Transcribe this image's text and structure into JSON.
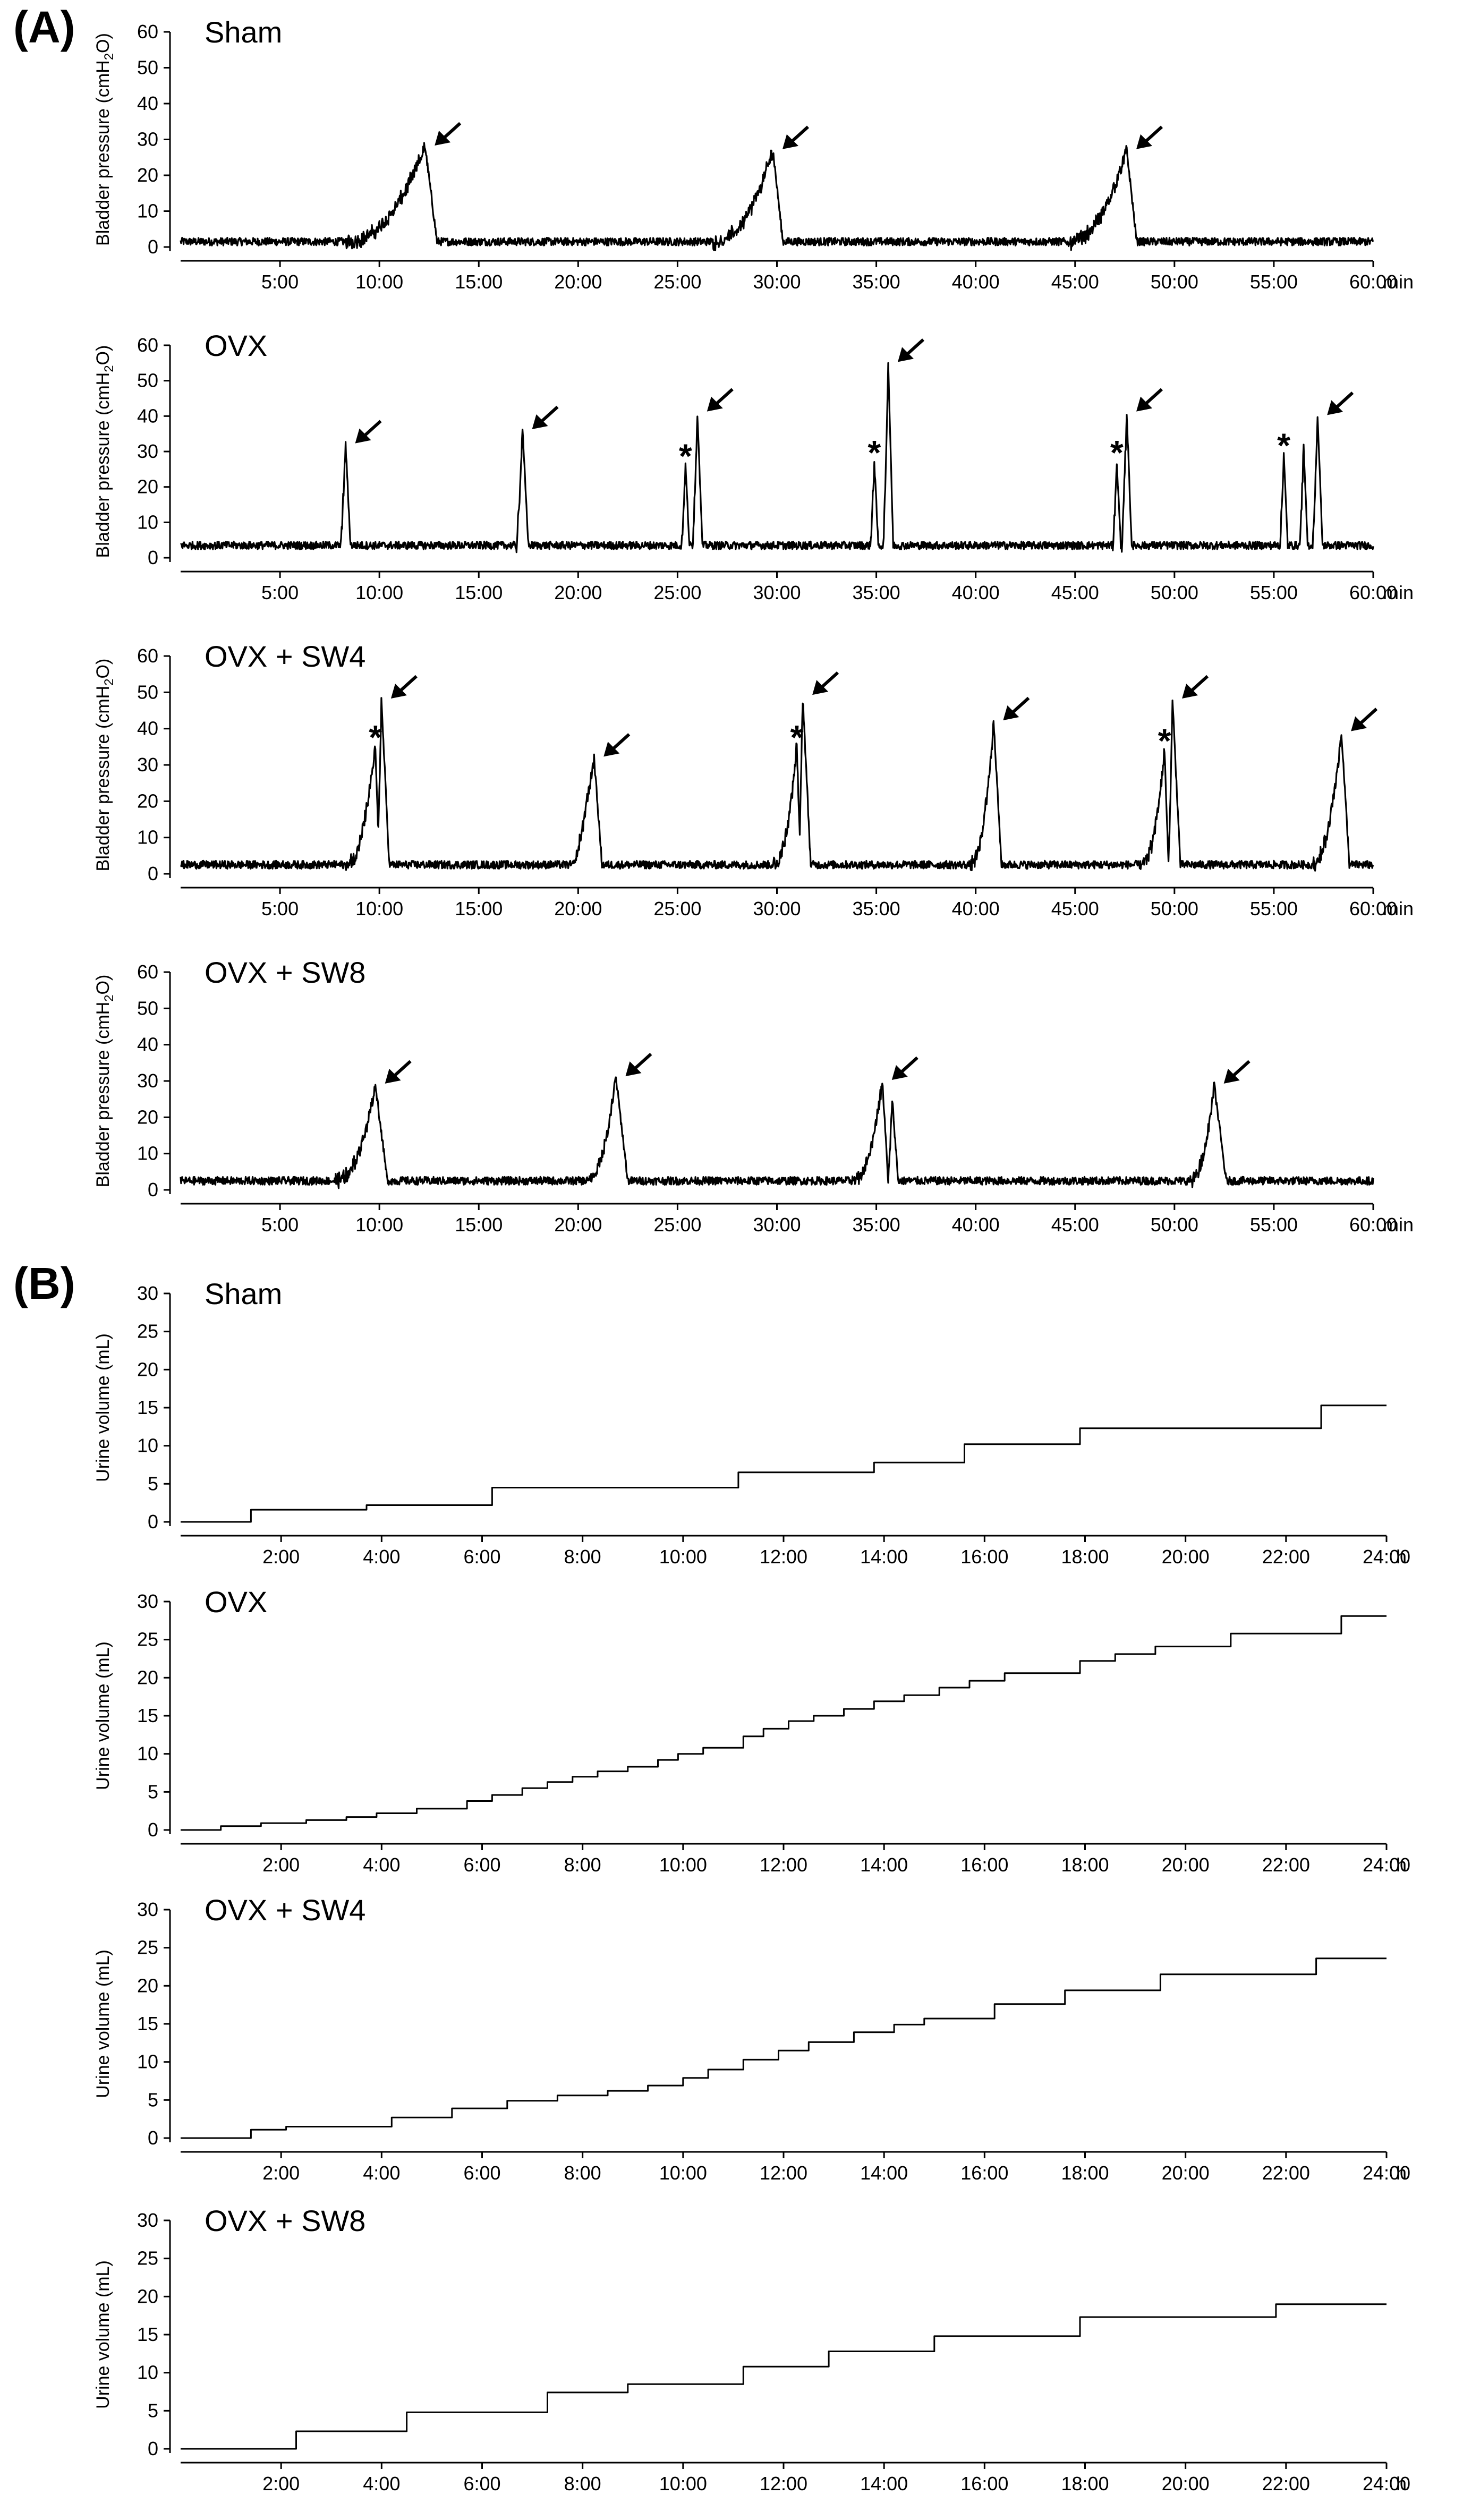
{
  "figure": {
    "label_a": "(A)",
    "label_b": "(B)"
  },
  "chart_data": [
    {
      "type": "line",
      "panel": "A",
      "title": "Sham",
      "ylabel": "Bladder pressure (cmH2O)",
      "ylabel_parts": [
        "Bladder pressure (cmH",
        "2",
        "O)"
      ],
      "xunit": "min",
      "xlim": [
        0,
        60
      ],
      "ylim": [
        0,
        60
      ],
      "yticks": [
        "0",
        "10",
        "20",
        "30",
        "40",
        "50",
        "60"
      ],
      "xticks": [
        "5:00",
        "10:00",
        "15:00",
        "20:00",
        "25:00",
        "30:00",
        "35:00",
        "40:00",
        "45:00",
        "50:00",
        "55:00",
        "60:00"
      ],
      "baseline": 1.5,
      "peaks": [
        {
          "t": 12.3,
          "v": 28,
          "rise": 4.0,
          "fall": 0.6
        },
        {
          "t": 29.8,
          "v": 27,
          "rise": 3.0,
          "fall": 0.5
        },
        {
          "t": 47.6,
          "v": 27,
          "rise": 3.0,
          "fall": 0.5
        }
      ],
      "arrows_at_min": [
        12.3,
        29.8,
        47.6
      ],
      "asterisks_at_min": []
    },
    {
      "type": "line",
      "panel": "A",
      "title": "OVX",
      "ylabel": "Bladder pressure (cmH2O)",
      "ylabel_parts": [
        "Bladder pressure (cmH",
        "2",
        "O)"
      ],
      "xunit": "min",
      "xlim": [
        0,
        60
      ],
      "ylim": [
        0,
        60
      ],
      "yticks": [
        "0",
        "10",
        "20",
        "30",
        "40",
        "50",
        "60"
      ],
      "xticks": [
        "5:00",
        "10:00",
        "15:00",
        "20:00",
        "25:00",
        "30:00",
        "35:00",
        "40:00",
        "45:00",
        "50:00",
        "55:00",
        "60:00"
      ],
      "baseline": 3.5,
      "peaks": [
        {
          "t": 8.3,
          "v": 32,
          "rise": 0.25,
          "fall": 0.25
        },
        {
          "t": 17.2,
          "v": 36,
          "rise": 0.3,
          "fall": 0.3
        },
        {
          "t": 25.4,
          "v": 26,
          "rise": 0.2,
          "fall": 0.2
        },
        {
          "t": 26.0,
          "v": 41,
          "rise": 0.25,
          "fall": 0.25
        },
        {
          "t": 34.9,
          "v": 27,
          "rise": 0.2,
          "fall": 0.2
        },
        {
          "t": 35.6,
          "v": 55,
          "rise": 0.25,
          "fall": 0.25
        },
        {
          "t": 47.1,
          "v": 27,
          "rise": 0.2,
          "fall": 0.2
        },
        {
          "t": 47.6,
          "v": 41,
          "rise": 0.25,
          "fall": 0.25
        },
        {
          "t": 55.5,
          "v": 29,
          "rise": 0.2,
          "fall": 0.2
        },
        {
          "t": 56.5,
          "v": 31,
          "rise": 0.2,
          "fall": 0.2
        },
        {
          "t": 57.2,
          "v": 40,
          "rise": 0.25,
          "fall": 0.25
        }
      ],
      "arrows_at_min": [
        8.3,
        17.2,
        26.0,
        35.6,
        47.6,
        57.2
      ],
      "asterisks_at_min": [
        25.4,
        34.9,
        47.1,
        55.5
      ]
    },
    {
      "type": "line",
      "panel": "A",
      "title": "OVX + SW4",
      "ylabel": "Bladder pressure (cmH2O)",
      "ylabel_parts": [
        "Bladder pressure (cmH",
        "2",
        "O)"
      ],
      "xunit": "min",
      "xlim": [
        0,
        60
      ],
      "ylim": [
        0,
        60
      ],
      "yticks": [
        "0",
        "10",
        "20",
        "30",
        "40",
        "50",
        "60"
      ],
      "xticks": [
        "5:00",
        "10:00",
        "15:00",
        "20:00",
        "25:00",
        "30:00",
        "35:00",
        "40:00",
        "45:00",
        "50:00",
        "55:00",
        "60:00"
      ],
      "baseline": 2.5,
      "peaks": [
        {
          "t": 9.8,
          "v": 35,
          "rise": 1.5,
          "fall": 0.2
        },
        {
          "t": 10.1,
          "v": 48,
          "rise": 0.2,
          "fall": 0.4
        },
        {
          "t": 20.8,
          "v": 32,
          "rise": 1.0,
          "fall": 0.4
        },
        {
          "t": 31.0,
          "v": 35,
          "rise": 1.2,
          "fall": 0.2
        },
        {
          "t": 31.3,
          "v": 49,
          "rise": 0.2,
          "fall": 0.4
        },
        {
          "t": 40.9,
          "v": 42,
          "rise": 1.2,
          "fall": 0.4
        },
        {
          "t": 49.5,
          "v": 34,
          "rise": 1.2,
          "fall": 0.2
        },
        {
          "t": 49.9,
          "v": 48,
          "rise": 0.2,
          "fall": 0.4
        },
        {
          "t": 58.4,
          "v": 39,
          "rise": 1.5,
          "fall": 0.4
        }
      ],
      "arrows_at_min": [
        10.1,
        20.8,
        31.3,
        40.9,
        49.9,
        58.4
      ],
      "asterisks_at_min": [
        9.8,
        31.0,
        49.5
      ]
    },
    {
      "type": "line",
      "panel": "A",
      "title": "OVX + SW8",
      "ylabel": "Bladder pressure (cmH2O)",
      "ylabel_parts": [
        "Bladder pressure (cmH",
        "2",
        "O)"
      ],
      "xunit": "min",
      "xlim": [
        0,
        60
      ],
      "ylim": [
        0,
        60
      ],
      "yticks": [
        "0",
        "10",
        "20",
        "30",
        "40",
        "50",
        "60"
      ],
      "xticks": [
        "5:00",
        "10:00",
        "15:00",
        "20:00",
        "25:00",
        "30:00",
        "35:00",
        "40:00",
        "45:00",
        "50:00",
        "55:00",
        "60:00"
      ],
      "baseline": 2.5,
      "peaks": [
        {
          "t": 9.8,
          "v": 29,
          "rise": 2.0,
          "fall": 0.6
        },
        {
          "t": 21.9,
          "v": 31,
          "rise": 1.5,
          "fall": 0.6
        },
        {
          "t": 35.3,
          "v": 30,
          "rise": 1.5,
          "fall": 0.3
        },
        {
          "t": 35.8,
          "v": 25,
          "rise": 0.2,
          "fall": 0.3
        },
        {
          "t": 52.0,
          "v": 29,
          "rise": 1.2,
          "fall": 0.6
        }
      ],
      "arrows_at_min": [
        9.8,
        21.9,
        35.3,
        52.0
      ],
      "asterisks_at_min": []
    },
    {
      "type": "line",
      "panel": "B",
      "title": "Sham",
      "ylabel": "Urine volume (mL)",
      "xunit": "h",
      "xlim": [
        0,
        24
      ],
      "ylim": [
        0,
        30
      ],
      "yticks": [
        "0",
        "5",
        "10",
        "15",
        "20",
        "25",
        "30"
      ],
      "xticks": [
        "2:00",
        "4:00",
        "6:00",
        "8:00",
        "10:00",
        "12:00",
        "14:00",
        "16:00",
        "18:00",
        "20:00",
        "22:00",
        "24:00"
      ],
      "steps": [
        [
          0,
          0
        ],
        [
          1.4,
          1.6
        ],
        [
          3.7,
          2.2
        ],
        [
          6.2,
          4.5
        ],
        [
          11.1,
          6.5
        ],
        [
          13.8,
          7.8
        ],
        [
          15.6,
          10.2
        ],
        [
          17.9,
          12.3
        ],
        [
          22.7,
          15.3
        ]
      ],
      "xend": 24.0
    },
    {
      "type": "line",
      "panel": "B",
      "title": "OVX",
      "ylabel": "Urine volume (mL)",
      "xunit": "h",
      "xlim": [
        0,
        24
      ],
      "ylim": [
        0,
        30
      ],
      "yticks": [
        "0",
        "5",
        "10",
        "15",
        "20",
        "25",
        "30"
      ],
      "xticks": [
        "2:00",
        "4:00",
        "6:00",
        "8:00",
        "10:00",
        "12:00",
        "14:00",
        "16:00",
        "18:00",
        "20:00",
        "22:00",
        "24:00"
      ],
      "steps": [
        [
          0,
          0
        ],
        [
          0.8,
          0.5
        ],
        [
          1.6,
          0.9
        ],
        [
          2.5,
          1.3
        ],
        [
          3.3,
          1.7
        ],
        [
          3.9,
          2.2
        ],
        [
          4.7,
          2.8
        ],
        [
          5.7,
          3.8
        ],
        [
          6.2,
          4.6
        ],
        [
          6.8,
          5.5
        ],
        [
          7.3,
          6.3
        ],
        [
          7.8,
          7.0
        ],
        [
          8.3,
          7.7
        ],
        [
          8.9,
          8.3
        ],
        [
          9.5,
          9.2
        ],
        [
          9.9,
          10.0
        ],
        [
          10.4,
          10.8
        ],
        [
          11.2,
          12.3
        ],
        [
          11.6,
          13.3
        ],
        [
          12.1,
          14.3
        ],
        [
          12.6,
          15.0
        ],
        [
          13.2,
          15.9
        ],
        [
          13.8,
          16.9
        ],
        [
          14.4,
          17.7
        ],
        [
          15.1,
          18.7
        ],
        [
          15.7,
          19.6
        ],
        [
          16.4,
          20.6
        ],
        [
          17.9,
          22.2
        ],
        [
          18.6,
          23.1
        ],
        [
          19.4,
          24.1
        ],
        [
          20.9,
          25.8
        ],
        [
          23.1,
          28.1
        ]
      ],
      "xend": 24.0
    },
    {
      "type": "line",
      "panel": "B",
      "title": "OVX + SW4",
      "ylabel": "Urine volume (mL)",
      "xunit": "h",
      "xlim": [
        0,
        24
      ],
      "ylim": [
        0,
        30
      ],
      "yticks": [
        "0",
        "5",
        "10",
        "15",
        "20",
        "25",
        "30"
      ],
      "xticks": [
        "2:00",
        "4:00",
        "6:00",
        "8:00",
        "10:00",
        "12:00",
        "14:00",
        "16:00",
        "18:00",
        "20:00",
        "22:00",
        "24:00"
      ],
      "steps": [
        [
          0,
          0
        ],
        [
          1.4,
          1.1
        ],
        [
          2.1,
          1.5
        ],
        [
          4.2,
          2.7
        ],
        [
          5.4,
          3.9
        ],
        [
          6.5,
          4.9
        ],
        [
          7.5,
          5.6
        ],
        [
          8.5,
          6.2
        ],
        [
          9.3,
          6.9
        ],
        [
          10.0,
          7.9
        ],
        [
          10.5,
          9.0
        ],
        [
          11.2,
          10.3
        ],
        [
          11.9,
          11.5
        ],
        [
          12.5,
          12.6
        ],
        [
          13.4,
          13.9
        ],
        [
          14.2,
          14.9
        ],
        [
          14.8,
          15.7
        ],
        [
          16.2,
          17.6
        ],
        [
          17.6,
          19.4
        ],
        [
          19.5,
          21.5
        ],
        [
          22.6,
          23.6
        ]
      ],
      "xend": 24.0
    },
    {
      "type": "line",
      "panel": "B",
      "title": "OVX + SW8",
      "ylabel": "Urine volume (mL)",
      "xunit": "h",
      "xlim": [
        0,
        24
      ],
      "ylim": [
        0,
        30
      ],
      "yticks": [
        "0",
        "5",
        "10",
        "15",
        "20",
        "25",
        "30"
      ],
      "xticks": [
        "2:00",
        "4:00",
        "6:00",
        "8:00",
        "10:00",
        "12:00",
        "14:00",
        "16:00",
        "18:00",
        "20:00",
        "22:00",
        "24:00"
      ],
      "steps": [
        [
          0,
          0
        ],
        [
          2.3,
          2.3
        ],
        [
          4.5,
          4.8
        ],
        [
          7.3,
          7.4
        ],
        [
          8.9,
          8.5
        ],
        [
          11.2,
          10.8
        ],
        [
          12.9,
          12.8
        ],
        [
          15.0,
          14.8
        ],
        [
          17.9,
          17.3
        ],
        [
          21.8,
          19.0
        ]
      ],
      "xend": 24.0
    }
  ]
}
